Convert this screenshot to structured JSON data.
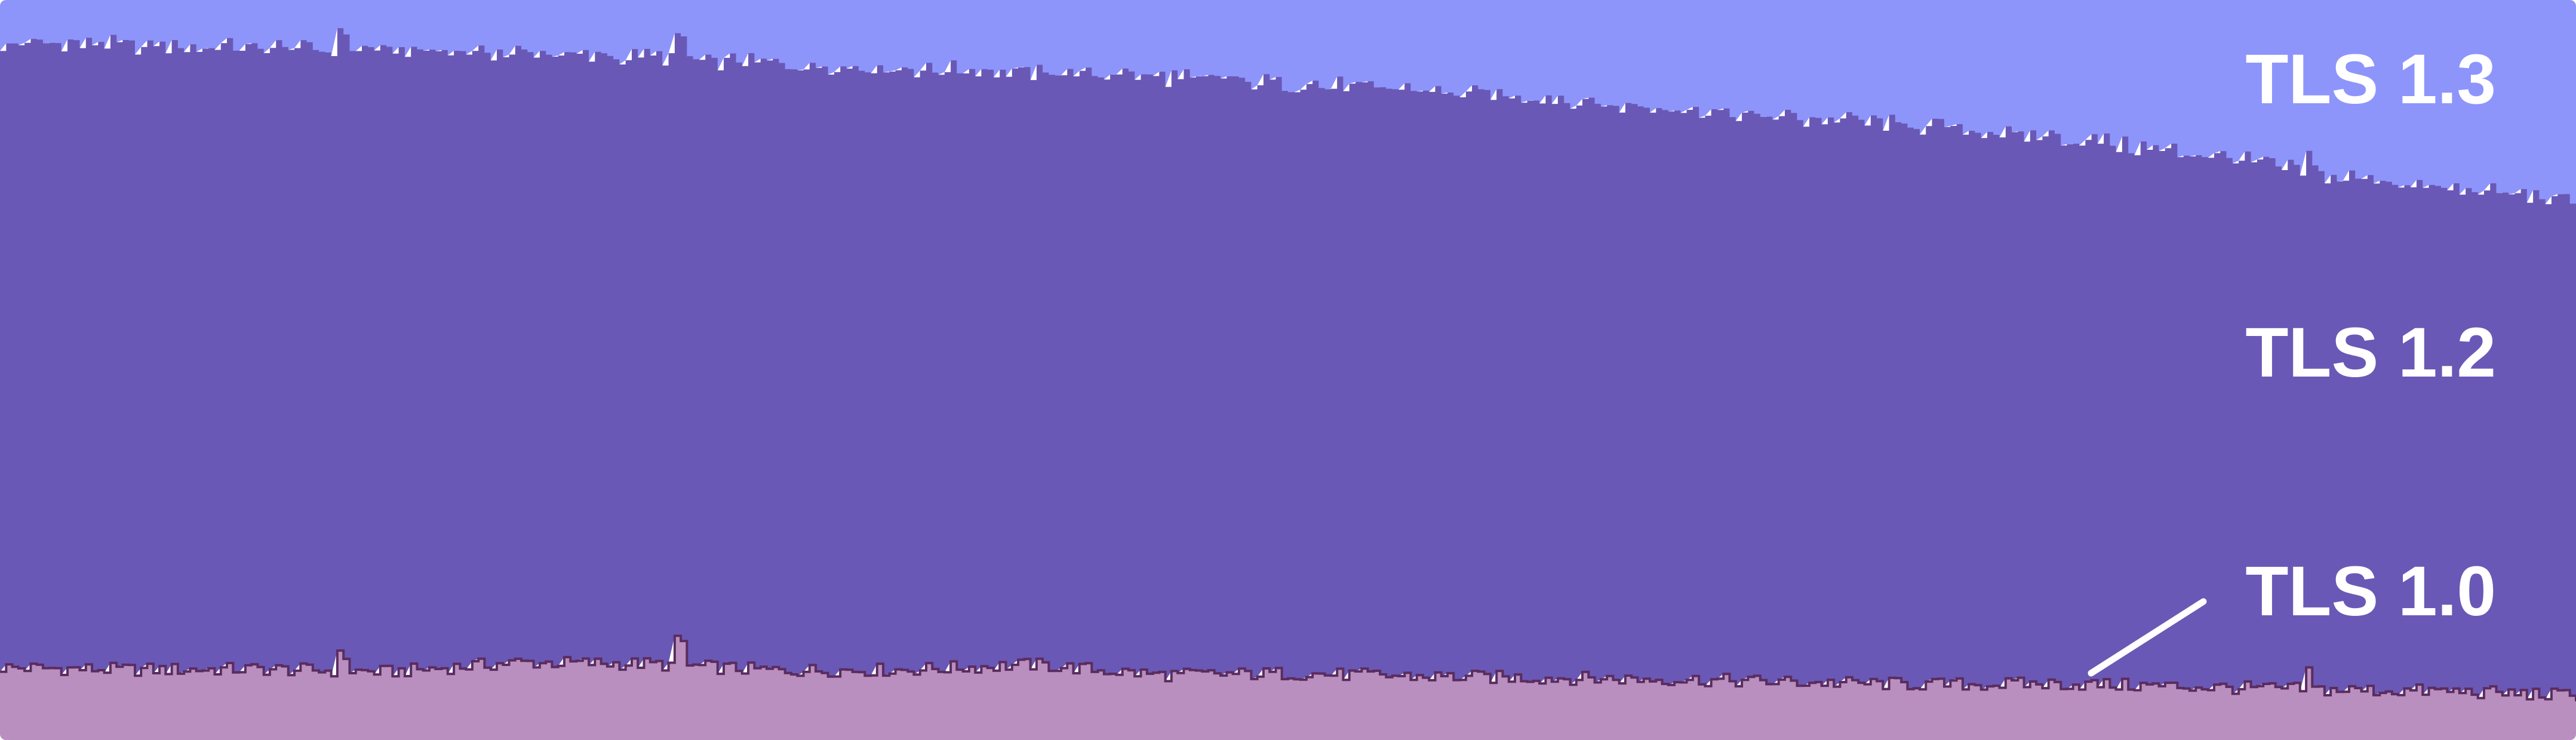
{
  "chart_data": {
    "type": "area",
    "stacked": true,
    "normalized_to": 100,
    "title": "",
    "xlabel": "",
    "ylabel": "",
    "axes_visible": false,
    "grid": false,
    "legend": "direct labels on right side",
    "ylim": [
      0,
      100
    ],
    "x": [
      0,
      5,
      10,
      15,
      20,
      25,
      30,
      35,
      40,
      45,
      50,
      55,
      60,
      65,
      70,
      75,
      80,
      85,
      90,
      95,
      100
    ],
    "series": [
      {
        "name": "TLS 1.0",
        "color": "#b98fbf",
        "stroke": "#5a2c5e",
        "values": [
          9.8,
          9.5,
          9.6,
          9.2,
          10.5,
          10.3,
          9.4,
          9.5,
          10.2,
          8.8,
          9.0,
          8.6,
          8.4,
          8.2,
          7.8,
          7.5,
          7.6,
          7.2,
          6.8,
          6.6,
          6.0
        ]
      },
      {
        "name": "TLS 1.2",
        "color": "#6a58b6",
        "values": [
          84.4,
          84.4,
          84.0,
          83.9,
          82.3,
          81.9,
          82.1,
          81.2,
          80.0,
          80.9,
          79.7,
          79.1,
          78.4,
          76.9,
          76.1,
          75.3,
          73.8,
          72.1,
          69.8,
          67.9,
          66.9
        ]
      },
      {
        "name": "TLS 1.3",
        "color": "#8d95fb",
        "values": [
          5.8,
          6.1,
          6.4,
          6.9,
          7.2,
          7.8,
          8.5,
          9.3,
          9.8,
          10.3,
          11.3,
          12.3,
          13.2,
          14.9,
          16.1,
          17.2,
          18.6,
          20.7,
          23.4,
          25.5,
          27.1
        ]
      }
    ],
    "annotation": {
      "label": "TLS 1.0",
      "points_to_series": "TLS 1.0"
    }
  }
}
